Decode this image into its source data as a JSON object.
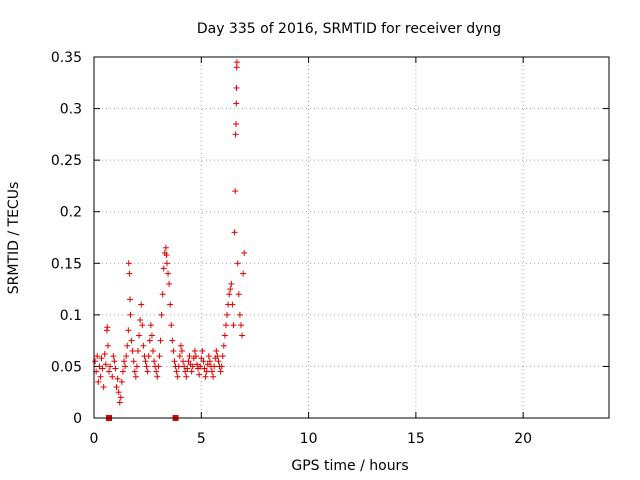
{
  "chart_data": {
    "type": "scatter",
    "title": "Day 335 of 2016, SRMTID for receiver dyng",
    "xlabel": "GPS time / hours",
    "ylabel": "SRMTID / TECUs",
    "xlim": [
      0,
      24
    ],
    "ylim": [
      0,
      0.35
    ],
    "xticks": [
      0,
      5,
      10,
      15,
      20
    ],
    "xtick_labels": [
      "0",
      "5",
      "10",
      "15",
      "20"
    ],
    "yticks": [
      0,
      0.05,
      0.1,
      0.15,
      0.2,
      0.25,
      0.3,
      0.35
    ],
    "ytick_labels": [
      "0",
      "0.05",
      "0.1",
      "0.15",
      "0.2",
      "0.25",
      "0.3",
      "0.35"
    ],
    "grid": true,
    "marker": "plus",
    "color": "#e00000",
    "series": [
      {
        "name": "SRMTID",
        "points": [
          [
            0.05,
            0.055
          ],
          [
            0.1,
            0.045
          ],
          [
            0.15,
            0.06
          ],
          [
            0.2,
            0.035
          ],
          [
            0.25,
            0.05
          ],
          [
            0.3,
            0.04
          ],
          [
            0.35,
            0.058
          ],
          [
            0.4,
            0.048
          ],
          [
            0.45,
            0.03
          ],
          [
            0.5,
            0.062
          ],
          [
            0.55,
            0.052
          ],
          [
            0.6,
            0.085
          ],
          [
            0.62,
            0.088
          ],
          [
            0.65,
            0.07
          ],
          [
            0.7,
            0.045
          ],
          [
            0.75,
            0.05
          ],
          [
            0.85,
            0.04
          ],
          [
            0.9,
            0.06
          ],
          [
            0.95,
            0.055
          ],
          [
            1.0,
            0.048
          ],
          [
            1.05,
            0.03
          ],
          [
            1.1,
            0.038
          ],
          [
            1.15,
            0.025
          ],
          [
            1.2,
            0.015
          ],
          [
            1.25,
            0.02
          ],
          [
            1.3,
            0.035
          ],
          [
            1.35,
            0.045
          ],
          [
            1.4,
            0.055
          ],
          [
            1.45,
            0.05
          ],
          [
            1.5,
            0.06
          ],
          [
            1.55,
            0.07
          ],
          [
            1.6,
            0.085
          ],
          [
            1.62,
            0.15
          ],
          [
            1.65,
            0.14
          ],
          [
            1.68,
            0.115
          ],
          [
            1.7,
            0.1
          ],
          [
            1.75,
            0.075
          ],
          [
            1.8,
            0.065
          ],
          [
            1.85,
            0.055
          ],
          [
            1.9,
            0.045
          ],
          [
            1.95,
            0.04
          ],
          [
            2.0,
            0.05
          ],
          [
            2.05,
            0.065
          ],
          [
            2.1,
            0.08
          ],
          [
            2.15,
            0.095
          ],
          [
            2.2,
            0.11
          ],
          [
            2.25,
            0.09
          ],
          [
            2.3,
            0.07
          ],
          [
            2.35,
            0.06
          ],
          [
            2.4,
            0.055
          ],
          [
            2.45,
            0.05
          ],
          [
            2.5,
            0.045
          ],
          [
            2.55,
            0.06
          ],
          [
            2.6,
            0.075
          ],
          [
            2.65,
            0.09
          ],
          [
            2.7,
            0.08
          ],
          [
            2.75,
            0.065
          ],
          [
            2.8,
            0.055
          ],
          [
            2.85,
            0.05
          ],
          [
            2.9,
            0.045
          ],
          [
            2.95,
            0.04
          ],
          [
            3.0,
            0.05
          ],
          [
            3.05,
            0.06
          ],
          [
            3.1,
            0.075
          ],
          [
            3.15,
            0.1
          ],
          [
            3.2,
            0.12
          ],
          [
            3.25,
            0.145
          ],
          [
            3.3,
            0.16
          ],
          [
            3.35,
            0.165
          ],
          [
            3.38,
            0.158
          ],
          [
            3.4,
            0.15
          ],
          [
            3.45,
            0.14
          ],
          [
            3.5,
            0.13
          ],
          [
            3.55,
            0.11
          ],
          [
            3.6,
            0.09
          ],
          [
            3.65,
            0.075
          ],
          [
            3.7,
            0.065
          ],
          [
            3.75,
            0.055
          ],
          [
            3.8,
            0.05
          ],
          [
            3.85,
            0.045
          ],
          [
            3.9,
            0.04
          ],
          [
            3.95,
            0.05
          ],
          [
            4.0,
            0.06
          ],
          [
            4.05,
            0.07
          ],
          [
            4.1,
            0.065
          ],
          [
            4.15,
            0.055
          ],
          [
            4.2,
            0.05
          ],
          [
            4.25,
            0.045
          ],
          [
            4.3,
            0.04
          ],
          [
            4.35,
            0.048
          ],
          [
            4.4,
            0.055
          ],
          [
            4.45,
            0.06
          ],
          [
            4.5,
            0.052
          ],
          [
            4.55,
            0.045
          ],
          [
            4.6,
            0.05
          ],
          [
            4.65,
            0.058
          ],
          [
            4.7,
            0.065
          ],
          [
            4.75,
            0.06
          ],
          [
            4.8,
            0.052
          ],
          [
            4.85,
            0.048
          ],
          [
            4.9,
            0.042
          ],
          [
            4.95,
            0.05
          ],
          [
            5.0,
            0.058
          ],
          [
            5.05,
            0.065
          ],
          [
            5.1,
            0.055
          ],
          [
            5.15,
            0.048
          ],
          [
            5.2,
            0.04
          ],
          [
            5.25,
            0.045
          ],
          [
            5.3,
            0.052
          ],
          [
            5.35,
            0.06
          ],
          [
            5.4,
            0.055
          ],
          [
            5.45,
            0.05
          ],
          [
            5.5,
            0.045
          ],
          [
            5.55,
            0.04
          ],
          [
            5.6,
            0.05
          ],
          [
            5.65,
            0.058
          ],
          [
            5.7,
            0.065
          ],
          [
            5.75,
            0.06
          ],
          [
            5.8,
            0.055
          ],
          [
            5.85,
            0.05
          ],
          [
            5.9,
            0.045
          ],
          [
            5.95,
            0.05
          ],
          [
            6.0,
            0.06
          ],
          [
            6.05,
            0.07
          ],
          [
            6.1,
            0.08
          ],
          [
            6.15,
            0.09
          ],
          [
            6.2,
            0.1
          ],
          [
            6.25,
            0.11
          ],
          [
            6.3,
            0.12
          ],
          [
            6.35,
            0.125
          ],
          [
            6.4,
            0.13
          ],
          [
            6.45,
            0.11
          ],
          [
            6.5,
            0.09
          ],
          [
            6.55,
            0.18
          ],
          [
            6.58,
            0.22
          ],
          [
            6.6,
            0.275
          ],
          [
            6.62,
            0.285
          ],
          [
            6.63,
            0.305
          ],
          [
            6.64,
            0.32
          ],
          [
            6.65,
            0.34
          ],
          [
            6.66,
            0.345
          ],
          [
            6.7,
            0.15
          ],
          [
            6.75,
            0.12
          ],
          [
            6.8,
            0.1
          ],
          [
            6.85,
            0.09
          ],
          [
            6.9,
            0.08
          ],
          [
            6.95,
            0.14
          ],
          [
            7.0,
            0.16
          ]
        ]
      }
    ],
    "zero_markers": [
      0.7,
      3.8
    ]
  }
}
